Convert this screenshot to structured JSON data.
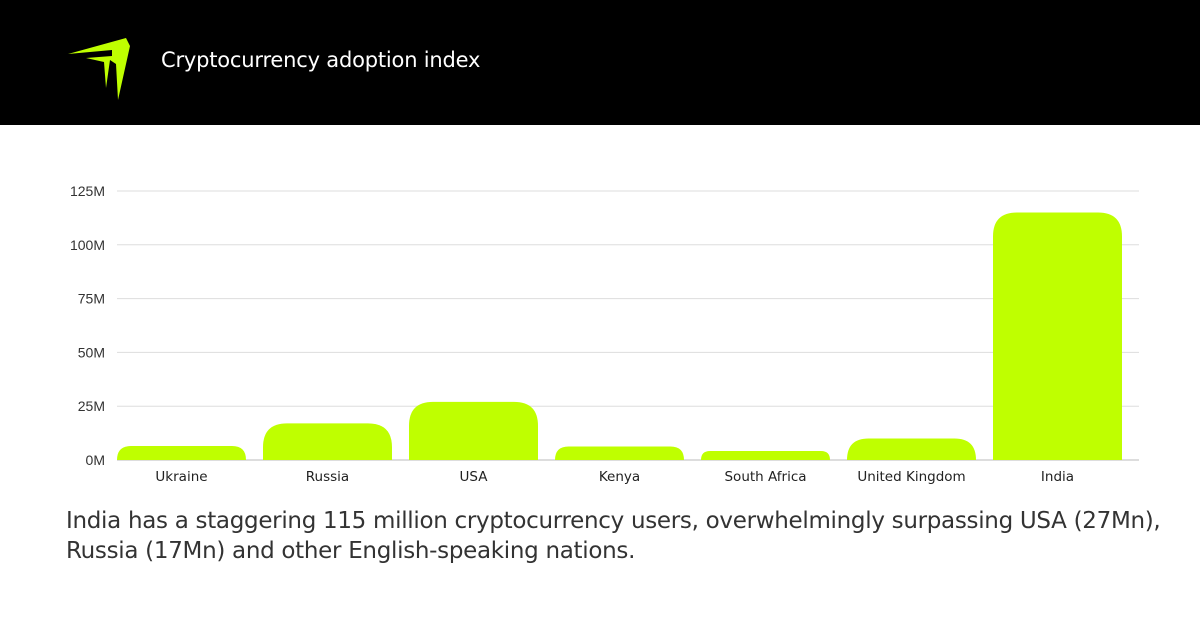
{
  "header": {
    "title": "Cryptocurrency adoption index",
    "logo_icon": "lime-arrow-logo-icon"
  },
  "colors": {
    "header_bg": "#000000",
    "accent": "#BFFF00",
    "gridline": "#DDDDDD",
    "baseline": "#BBBBBB",
    "text": "#333333"
  },
  "chart_data": {
    "type": "bar",
    "title": "",
    "xlabel": "",
    "ylabel": "",
    "categories": [
      "Ukraine",
      "Russia",
      "USA",
      "Kenya",
      "South Africa",
      "United Kingdom",
      "India"
    ],
    "values": [
      6.5,
      17,
      27,
      6.3,
      4.2,
      10,
      115
    ],
    "units": "M",
    "ylim": [
      0,
      125
    ],
    "yticks": [
      0,
      25,
      50,
      75,
      100,
      125
    ],
    "ytick_labels": [
      "0M",
      "25M",
      "50M",
      "75M",
      "100M",
      "125M"
    ],
    "grid": true,
    "legend": "none",
    "bar_color": "#BFFF00"
  },
  "caption": {
    "text": "India has a staggering 115 million cryptocurrency users, overwhelmingly surpassing USA (27Mn), Russia (17Mn) and other English-speaking nations."
  }
}
